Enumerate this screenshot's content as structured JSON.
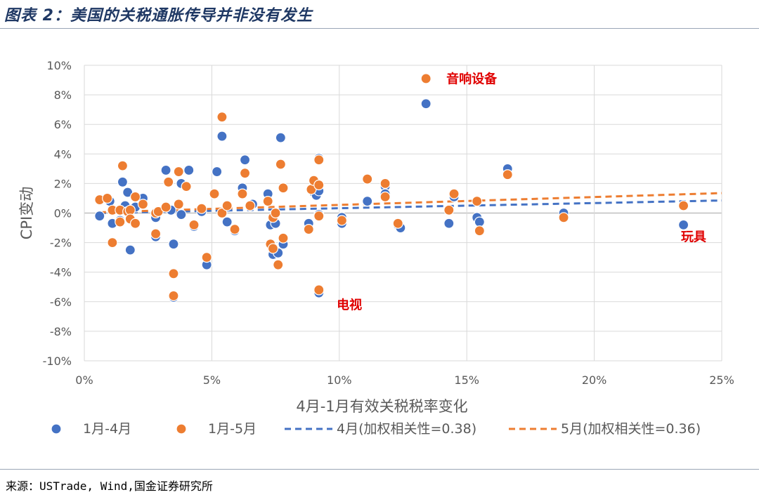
{
  "header": {
    "title": "图表 2：美国的关税通胀传导并非没有发生"
  },
  "footer": {
    "source": "来源：USTrade, Wind,国金证券研究所"
  },
  "chart_data": {
    "type": "scatter",
    "title": "",
    "xlabel": "4月-1月有效关税税率变化",
    "ylabel": "CPI变动",
    "xlim": [
      0,
      25
    ],
    "ylim": [
      -10,
      10
    ],
    "x_ticks": [
      0,
      5,
      10,
      15,
      20,
      25
    ],
    "x_tick_labels": [
      "0%",
      "5%",
      "10%",
      "15%",
      "20%",
      "25%"
    ],
    "y_ticks": [
      10,
      8,
      6,
      4,
      2,
      0,
      -2,
      -4,
      -6,
      -8,
      -10
    ],
    "y_tick_labels": [
      "10%",
      "8%",
      "6%",
      "4%",
      "2%",
      "0%",
      "-2%",
      "-4%",
      "-6%",
      "-8%",
      "-10%"
    ],
    "grid": true,
    "legend_position": "bottom",
    "colors": {
      "apr": "#4472c4",
      "may": "#ed7d31",
      "grid": "#d9d9d9",
      "annotation": "#e00000"
    },
    "series": [
      {
        "name": "1月-4月",
        "marker": "circle",
        "color": "#4472c4",
        "points": [
          [
            0.6,
            -0.2
          ],
          [
            1.1,
            -0.7
          ],
          [
            1.0,
            0.8
          ],
          [
            1.4,
            -0.5
          ],
          [
            1.5,
            2.1
          ],
          [
            1.7,
            1.4
          ],
          [
            1.8,
            -2.5
          ],
          [
            1.6,
            0.5
          ],
          [
            2.0,
            0.4
          ],
          [
            2.3,
            1.0
          ],
          [
            2.8,
            -0.3
          ],
          [
            2.8,
            -1.6
          ],
          [
            3.2,
            2.9
          ],
          [
            3.4,
            0.2
          ],
          [
            3.5,
            -2.1
          ],
          [
            3.5,
            -5.7
          ],
          [
            3.8,
            2.0
          ],
          [
            3.8,
            -0.1
          ],
          [
            4.1,
            2.9
          ],
          [
            4.3,
            -0.9
          ],
          [
            4.6,
            0.1
          ],
          [
            4.8,
            -3.5
          ],
          [
            5.2,
            2.8
          ],
          [
            5.4,
            5.2
          ],
          [
            5.6,
            -0.6
          ],
          [
            5.9,
            -1.2
          ],
          [
            6.2,
            1.7
          ],
          [
            6.3,
            3.6
          ],
          [
            6.6,
            0.6
          ],
          [
            7.2,
            1.3
          ],
          [
            7.3,
            -0.8
          ],
          [
            7.4,
            -2.8
          ],
          [
            7.5,
            -0.7
          ],
          [
            7.6,
            -2.7
          ],
          [
            7.7,
            5.1
          ],
          [
            7.8,
            -2.1
          ],
          [
            7.8,
            1.7
          ],
          [
            8.8,
            -0.7
          ],
          [
            9.0,
            1.4
          ],
          [
            9.1,
            1.2
          ],
          [
            9.2,
            1.5
          ],
          [
            9.2,
            3.7
          ],
          [
            9.2,
            -5.4
          ],
          [
            9.2,
            -0.1
          ],
          [
            10.1,
            -0.3
          ],
          [
            10.1,
            -0.7
          ],
          [
            11.1,
            0.8
          ],
          [
            11.8,
            1.8
          ],
          [
            11.8,
            1.3
          ],
          [
            12.3,
            -0.8
          ],
          [
            12.4,
            -1.0
          ],
          [
            13.4,
            7.4
          ],
          [
            14.3,
            -0.7
          ],
          [
            14.5,
            1.1
          ],
          [
            15.4,
            -0.3
          ],
          [
            15.5,
            -0.6
          ],
          [
            16.6,
            3.0
          ],
          [
            18.8,
            0.0
          ],
          [
            23.5,
            -0.8
          ]
        ]
      },
      {
        "name": "1月-5月",
        "marker": "circle",
        "color": "#ed7d31",
        "points": [
          [
            0.6,
            0.9
          ],
          [
            0.9,
            1.0
          ],
          [
            1.1,
            -2.0
          ],
          [
            1.1,
            0.2
          ],
          [
            1.4,
            0.2
          ],
          [
            1.5,
            3.2
          ],
          [
            1.4,
            -0.6
          ],
          [
            1.7,
            0.1
          ],
          [
            1.8,
            0.2
          ],
          [
            1.8,
            -0.4
          ],
          [
            2.0,
            1.1
          ],
          [
            2.0,
            -0.7
          ],
          [
            2.3,
            0.6
          ],
          [
            2.8,
            0.0
          ],
          [
            2.8,
            -1.4
          ],
          [
            2.9,
            0.1
          ],
          [
            3.2,
            0.4
          ],
          [
            3.3,
            2.1
          ],
          [
            3.5,
            -4.1
          ],
          [
            3.5,
            -5.6
          ],
          [
            3.7,
            2.8
          ],
          [
            3.7,
            0.6
          ],
          [
            4.0,
            1.8
          ],
          [
            4.3,
            -0.8
          ],
          [
            4.6,
            0.3
          ],
          [
            4.8,
            -3.0
          ],
          [
            5.1,
            1.3
          ],
          [
            5.4,
            6.5
          ],
          [
            5.4,
            0.0
          ],
          [
            5.6,
            0.5
          ],
          [
            5.9,
            -1.1
          ],
          [
            6.2,
            1.3
          ],
          [
            6.3,
            2.7
          ],
          [
            6.5,
            0.5
          ],
          [
            7.2,
            0.8
          ],
          [
            7.3,
            -2.1
          ],
          [
            7.4,
            -2.4
          ],
          [
            7.4,
            -0.3
          ],
          [
            7.5,
            0.0
          ],
          [
            7.6,
            -3.5
          ],
          [
            7.7,
            3.3
          ],
          [
            7.8,
            1.7
          ],
          [
            7.8,
            -1.7
          ],
          [
            8.8,
            -1.1
          ],
          [
            8.9,
            1.6
          ],
          [
            9.0,
            2.2
          ],
          [
            9.2,
            1.9
          ],
          [
            9.2,
            3.6
          ],
          [
            9.2,
            -5.2
          ],
          [
            9.2,
            -0.2
          ],
          [
            10.1,
            -0.5
          ],
          [
            11.1,
            2.3
          ],
          [
            11.8,
            2.0
          ],
          [
            11.8,
            1.1
          ],
          [
            12.3,
            -0.7
          ],
          [
            13.4,
            9.1
          ],
          [
            14.3,
            0.2
          ],
          [
            14.5,
            1.3
          ],
          [
            15.4,
            0.8
          ],
          [
            15.5,
            -1.2
          ],
          [
            16.6,
            2.6
          ],
          [
            18.8,
            -0.3
          ],
          [
            23.5,
            0.5
          ]
        ]
      },
      {
        "name": "4月(加权相关性=0.38)",
        "type": "trendline",
        "style": "dashed",
        "color": "#4472c4",
        "points": [
          [
            0.6,
            0.0
          ],
          [
            25.0,
            0.85
          ]
        ]
      },
      {
        "name": "5月(加权相关性=0.36)",
        "type": "trendline",
        "style": "dashed",
        "color": "#ed7d31",
        "points": [
          [
            0.6,
            0.05
          ],
          [
            25.0,
            1.35
          ]
        ]
      }
    ],
    "annotations": [
      {
        "text": "音响设备",
        "x": 14.2,
        "y": 8.8
      },
      {
        "text": "电视",
        "x": 9.9,
        "y": -6.5
      },
      {
        "text": "玩具",
        "x": 23.4,
        "y": -1.9
      }
    ]
  }
}
